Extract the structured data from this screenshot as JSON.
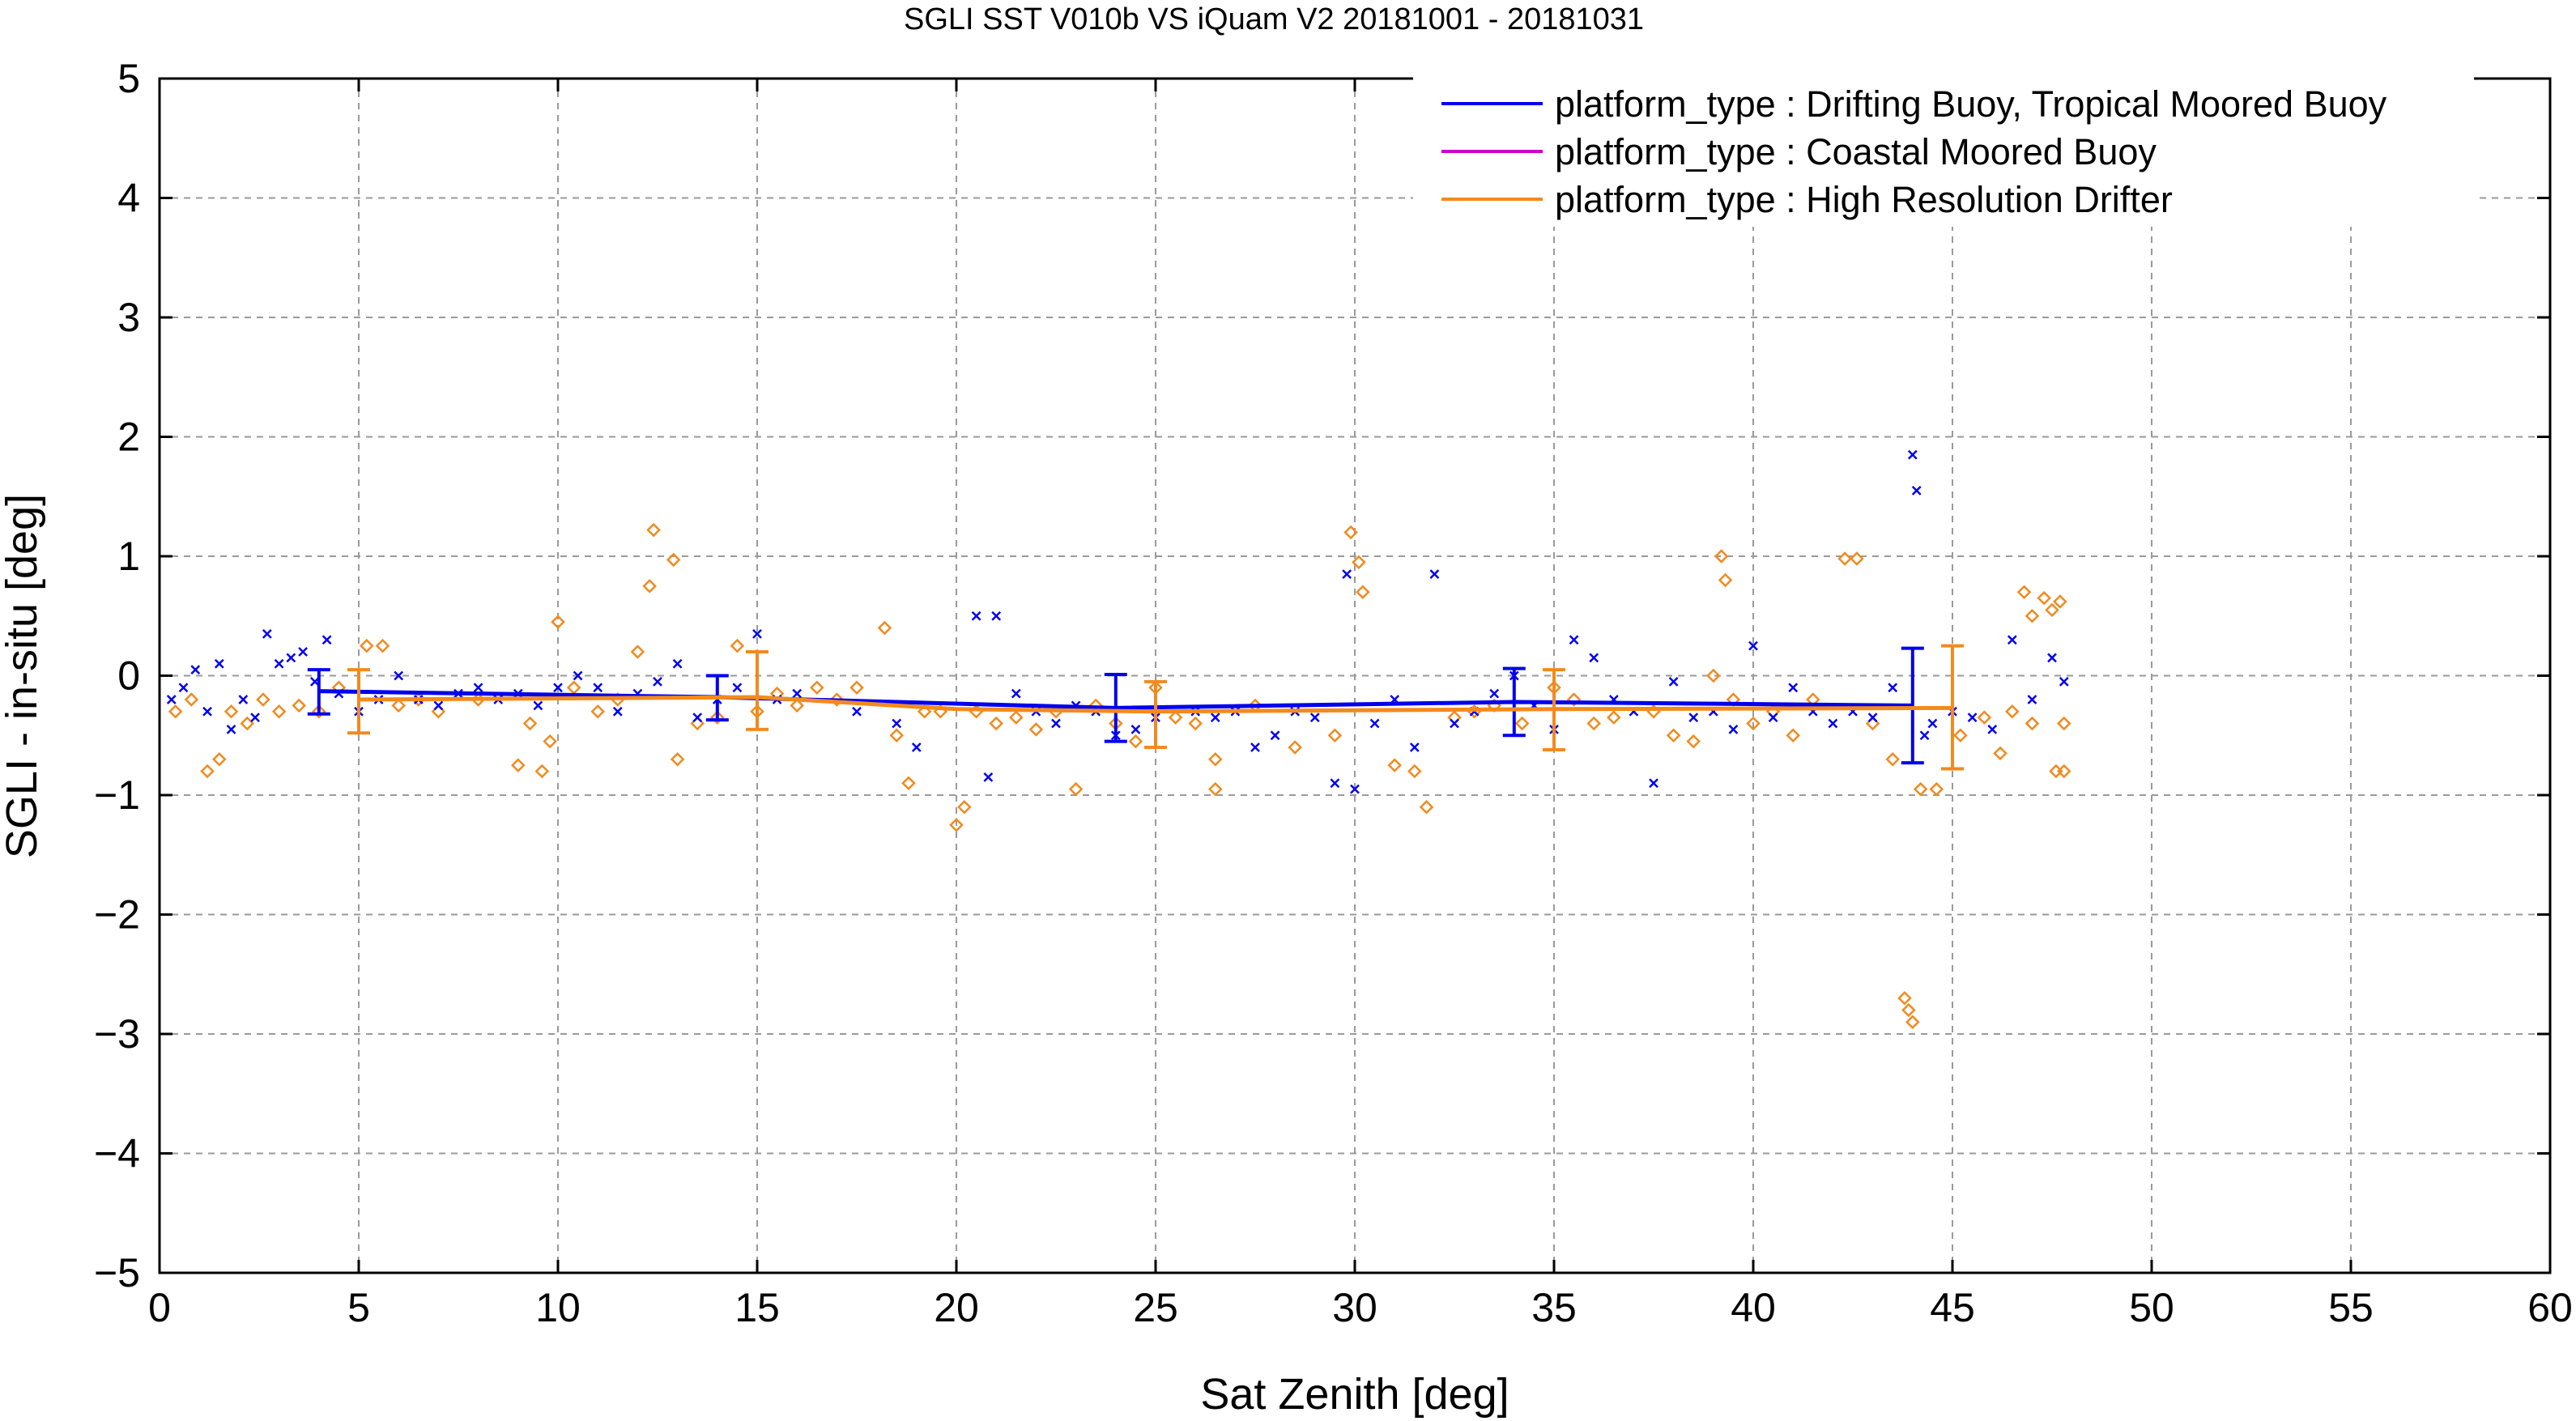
{
  "chart_data": {
    "type": "scatter",
    "title": "SGLI SST V010b VS iQuam V2 20181001 - 20181031",
    "xlabel": "Sat Zenith [deg]",
    "ylabel": "SGLI - in-situ [deg]",
    "xlim": [
      0,
      60
    ],
    "ylim": [
      -5,
      5
    ],
    "x_ticks": [
      0,
      5,
      10,
      15,
      20,
      25,
      30,
      35,
      40,
      45,
      50,
      55,
      60
    ],
    "y_ticks": [
      -5,
      -4,
      -3,
      -2,
      -1,
      0,
      1,
      2,
      3,
      4,
      5
    ],
    "grid": true,
    "legend_position": "top-right",
    "series": [
      {
        "name": "platform_type : Drifting Buoy, Tropical Moored Buoy",
        "color": "#0000ee",
        "marker": "x",
        "mean_line": [
          {
            "x": 4,
            "y": -0.13
          },
          {
            "x": 14,
            "y": -0.18
          },
          {
            "x": 24,
            "y": -0.27
          },
          {
            "x": 34,
            "y": -0.22
          },
          {
            "x": 44,
            "y": -0.25
          }
        ],
        "error_bars": [
          {
            "x": 4,
            "low": -0.32,
            "high": 0.05
          },
          {
            "x": 14,
            "low": -0.37,
            "high": 0.0
          },
          {
            "x": 24,
            "low": -0.55,
            "high": 0.01
          },
          {
            "x": 34,
            "low": -0.5,
            "high": 0.06
          },
          {
            "x": 44,
            "low": -0.73,
            "high": 0.23
          }
        ],
        "points": [
          [
            0.3,
            -0.2
          ],
          [
            0.6,
            -0.1
          ],
          [
            0.9,
            0.05
          ],
          [
            1.2,
            -0.3
          ],
          [
            1.5,
            0.1
          ],
          [
            1.8,
            -0.45
          ],
          [
            2.1,
            -0.2
          ],
          [
            2.4,
            -0.35
          ],
          [
            2.7,
            0.35
          ],
          [
            3.0,
            0.1
          ],
          [
            3.3,
            0.15
          ],
          [
            3.6,
            0.2
          ],
          [
            3.9,
            -0.05
          ],
          [
            4.2,
            0.3
          ],
          [
            4.5,
            -0.15
          ],
          [
            5.0,
            -0.3
          ],
          [
            5.5,
            -0.2
          ],
          [
            6.0,
            0.0
          ],
          [
            6.5,
            -0.2
          ],
          [
            7.0,
            -0.25
          ],
          [
            7.5,
            -0.15
          ],
          [
            8.0,
            -0.1
          ],
          [
            8.5,
            -0.2
          ],
          [
            9.0,
            -0.15
          ],
          [
            9.5,
            -0.25
          ],
          [
            10.0,
            -0.1
          ],
          [
            10.5,
            0.0
          ],
          [
            11.0,
            -0.1
          ],
          [
            11.5,
            -0.3
          ],
          [
            12.0,
            -0.15
          ],
          [
            12.5,
            -0.05
          ],
          [
            13.0,
            0.1
          ],
          [
            13.5,
            -0.35
          ],
          [
            14.0,
            -0.2
          ],
          [
            14.5,
            -0.1
          ],
          [
            15.0,
            0.35
          ],
          [
            15.5,
            -0.2
          ],
          [
            16.0,
            -0.15
          ],
          [
            17.5,
            -0.3
          ],
          [
            18.5,
            -0.4
          ],
          [
            19.0,
            -0.6
          ],
          [
            20.5,
            0.5
          ],
          [
            21.0,
            0.5
          ],
          [
            20.8,
            -0.85
          ],
          [
            21.5,
            -0.15
          ],
          [
            22.0,
            -0.3
          ],
          [
            22.5,
            -0.4
          ],
          [
            23.0,
            -0.25
          ],
          [
            23.5,
            -0.3
          ],
          [
            24.0,
            -0.5
          ],
          [
            24.5,
            -0.45
          ],
          [
            25.0,
            -0.35
          ],
          [
            26.0,
            -0.3
          ],
          [
            26.5,
            -0.35
          ],
          [
            27.0,
            -0.3
          ],
          [
            27.5,
            -0.6
          ],
          [
            28.0,
            -0.5
          ],
          [
            28.5,
            -0.3
          ],
          [
            29.0,
            -0.35
          ],
          [
            29.5,
            -0.9
          ],
          [
            29.8,
            0.85
          ],
          [
            30.0,
            -0.95
          ],
          [
            30.5,
            -0.4
          ],
          [
            31.0,
            -0.2
          ],
          [
            31.5,
            -0.6
          ],
          [
            32.0,
            0.85
          ],
          [
            32.5,
            -0.4
          ],
          [
            33.0,
            -0.3
          ],
          [
            33.5,
            -0.15
          ],
          [
            34.0,
            0.0
          ],
          [
            34.5,
            -0.25
          ],
          [
            35.0,
            -0.45
          ],
          [
            35.5,
            0.3
          ],
          [
            36.0,
            0.15
          ],
          [
            36.5,
            -0.2
          ],
          [
            37.0,
            -0.3
          ],
          [
            37.5,
            -0.9
          ],
          [
            38.0,
            -0.05
          ],
          [
            38.5,
            -0.35
          ],
          [
            39.0,
            -0.3
          ],
          [
            39.5,
            -0.45
          ],
          [
            40.0,
            0.25
          ],
          [
            40.5,
            -0.35
          ],
          [
            41.0,
            -0.1
          ],
          [
            41.5,
            -0.3
          ],
          [
            42.0,
            -0.4
          ],
          [
            42.5,
            -0.3
          ],
          [
            43.0,
            -0.35
          ],
          [
            43.5,
            -0.1
          ],
          [
            44.0,
            1.85
          ],
          [
            44.1,
            1.55
          ],
          [
            44.3,
            -0.5
          ],
          [
            44.5,
            -0.4
          ],
          [
            45.0,
            -0.3
          ],
          [
            45.5,
            -0.35
          ],
          [
            46.0,
            -0.45
          ],
          [
            46.5,
            0.3
          ],
          [
            47.0,
            -0.2
          ],
          [
            47.5,
            0.15
          ],
          [
            47.8,
            -0.05
          ]
        ]
      },
      {
        "name": "platform_type : Coastal Moored Buoy",
        "color": "#cc00cc",
        "marker": "diamond",
        "points": []
      },
      {
        "name": "platform_type : High Resolution Drifter",
        "color": "#f28a1e",
        "marker": "diamond",
        "mean_line": [
          {
            "x": 5,
            "y": -0.2
          },
          {
            "x": 15,
            "y": -0.18
          },
          {
            "x": 20,
            "y": -0.28
          },
          {
            "x": 25,
            "y": -0.3
          },
          {
            "x": 35,
            "y": -0.28
          },
          {
            "x": 45,
            "y": -0.27
          }
        ],
        "error_bars": [
          {
            "x": 5,
            "low": -0.48,
            "high": 0.05
          },
          {
            "x": 15,
            "low": -0.45,
            "high": 0.2
          },
          {
            "x": 25,
            "low": -0.6,
            "high": -0.05
          },
          {
            "x": 35,
            "low": -0.62,
            "high": 0.05
          },
          {
            "x": 45,
            "low": -0.78,
            "high": 0.25
          }
        ],
        "points": [
          [
            0.4,
            -0.3
          ],
          [
            0.8,
            -0.2
          ],
          [
            1.2,
            -0.8
          ],
          [
            1.5,
            -0.7
          ],
          [
            1.8,
            -0.3
          ],
          [
            2.2,
            -0.4
          ],
          [
            2.6,
            -0.2
          ],
          [
            3.0,
            -0.3
          ],
          [
            3.5,
            -0.25
          ],
          [
            4.0,
            -0.3
          ],
          [
            4.5,
            -0.1
          ],
          [
            5.2,
            0.25
          ],
          [
            5.6,
            0.25
          ],
          [
            6.0,
            -0.25
          ],
          [
            6.5,
            -0.2
          ],
          [
            7.0,
            -0.3
          ],
          [
            8.0,
            -0.2
          ],
          [
            9.0,
            -0.75
          ],
          [
            9.3,
            -0.4
          ],
          [
            9.6,
            -0.8
          ],
          [
            9.8,
            -0.55
          ],
          [
            10.0,
            0.45
          ],
          [
            10.4,
            -0.1
          ],
          [
            11.0,
            -0.3
          ],
          [
            11.5,
            -0.2
          ],
          [
            12.0,
            0.2
          ],
          [
            12.3,
            0.75
          ],
          [
            12.4,
            1.22
          ],
          [
            12.9,
            0.97
          ],
          [
            13.0,
            -0.7
          ],
          [
            13.5,
            -0.4
          ],
          [
            14.0,
            -0.35
          ],
          [
            14.5,
            0.25
          ],
          [
            15.0,
            -0.3
          ],
          [
            15.5,
            -0.15
          ],
          [
            16.0,
            -0.25
          ],
          [
            16.5,
            -0.1
          ],
          [
            17.0,
            -0.2
          ],
          [
            17.5,
            -0.1
          ],
          [
            18.2,
            0.4
          ],
          [
            18.5,
            -0.5
          ],
          [
            18.8,
            -0.9
          ],
          [
            19.2,
            -0.3
          ],
          [
            19.6,
            -0.3
          ],
          [
            20.0,
            -1.25
          ],
          [
            20.2,
            -1.1
          ],
          [
            20.5,
            -0.3
          ],
          [
            21.0,
            -0.4
          ],
          [
            21.5,
            -0.35
          ],
          [
            22.0,
            -0.45
          ],
          [
            22.5,
            -0.3
          ],
          [
            23.0,
            -0.95
          ],
          [
            23.5,
            -0.25
          ],
          [
            24.0,
            -0.4
          ],
          [
            24.5,
            -0.55
          ],
          [
            25.0,
            -0.1
          ],
          [
            25.5,
            -0.35
          ],
          [
            26.0,
            -0.4
          ],
          [
            26.5,
            -0.95
          ],
          [
            26.5,
            -0.7
          ],
          [
            27.5,
            -0.25
          ],
          [
            28.5,
            -0.6
          ],
          [
            29.5,
            -0.5
          ],
          [
            29.9,
            1.2
          ],
          [
            30.1,
            0.95
          ],
          [
            30.2,
            0.7
          ],
          [
            31.0,
            -0.75
          ],
          [
            31.5,
            -0.8
          ],
          [
            31.8,
            -1.1
          ],
          [
            32.5,
            -0.35
          ],
          [
            33.0,
            -0.3
          ],
          [
            33.5,
            -0.25
          ],
          [
            34.2,
            -0.4
          ],
          [
            35.0,
            -0.1
          ],
          [
            35.5,
            -0.2
          ],
          [
            36.0,
            -0.4
          ],
          [
            36.5,
            -0.35
          ],
          [
            37.5,
            -0.3
          ],
          [
            38.0,
            -0.5
          ],
          [
            38.5,
            -0.55
          ],
          [
            39.0,
            0.0
          ],
          [
            39.2,
            1.0
          ],
          [
            39.3,
            0.8
          ],
          [
            39.5,
            -0.2
          ],
          [
            40.0,
            -0.4
          ],
          [
            40.5,
            -0.3
          ],
          [
            41.0,
            -0.5
          ],
          [
            41.5,
            -0.2
          ],
          [
            42.3,
            0.98
          ],
          [
            42.6,
            0.98
          ],
          [
            43.0,
            -0.4
          ],
          [
            43.5,
            -0.7
          ],
          [
            43.8,
            -2.7
          ],
          [
            43.9,
            -2.8
          ],
          [
            44.0,
            -2.9
          ],
          [
            44.2,
            -0.95
          ],
          [
            44.6,
            -0.95
          ],
          [
            45.2,
            -0.5
          ],
          [
            45.8,
            -0.35
          ],
          [
            46.2,
            -0.65
          ],
          [
            46.5,
            -0.3
          ],
          [
            46.8,
            0.7
          ],
          [
            47.0,
            -0.4
          ],
          [
            47.3,
            0.65
          ],
          [
            47.6,
            -0.8
          ],
          [
            47.7,
            0.62
          ],
          [
            47.8,
            -0.4
          ],
          [
            47.8,
            -0.8
          ],
          [
            47.5,
            0.55
          ],
          [
            47.0,
            0.5
          ]
        ]
      }
    ]
  }
}
